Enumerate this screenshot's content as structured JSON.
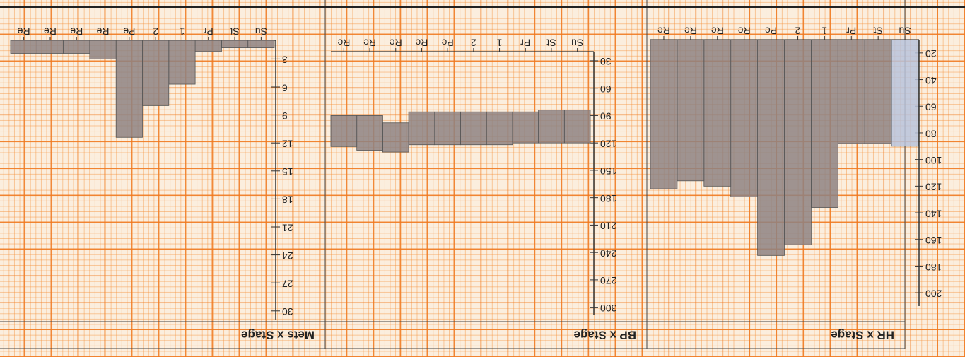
{
  "chart_data": [
    {
      "type": "bar",
      "title": "HR x Stage",
      "categories": [
        "Su",
        "St",
        "Pr",
        "1",
        "2",
        "Pe",
        "Re",
        "Re",
        "Re",
        "Re"
      ],
      "values": [
        90,
        88,
        88,
        136,
        164,
        172,
        128,
        120,
        116,
        122
      ],
      "colors": [
        "#b9c3dc",
        "#8e8282",
        "#8e8282",
        "#8e8282",
        "#8e8282",
        "#8e8282",
        "#8e8282",
        "#8e8282",
        "#8e8282",
        "#8e8282"
      ],
      "ylim": [
        10,
        210
      ],
      "yticks": [
        20,
        40,
        60,
        80,
        100,
        120,
        140,
        160,
        180,
        200
      ]
    },
    {
      "type": "range_bar",
      "title": "BP x Stage",
      "categories": [
        "Su",
        "St",
        "Pr",
        "1",
        "2",
        "Pe",
        "Re",
        "Re",
        "Re",
        "Re"
      ],
      "low": [
        84,
        84,
        86,
        86,
        86,
        86,
        86,
        98,
        90,
        90
      ],
      "high": [
        120,
        120,
        120,
        122,
        122,
        122,
        122,
        130,
        128,
        124
      ],
      "color": "#8e8282",
      "ylim": [
        20,
        308
      ],
      "yticks": [
        30,
        60,
        90,
        120,
        150,
        180,
        210,
        240,
        270,
        300
      ]
    },
    {
      "type": "bar",
      "title": "Mets x Stage",
      "categories": [
        "Su",
        "St",
        "Pr",
        "1",
        "2",
        "Pe",
        "Re",
        "Re",
        "Re",
        "Re"
      ],
      "values": [
        1.8,
        1.8,
        2.2,
        5.7,
        8.0,
        11.4,
        3.0,
        2.4,
        2.4,
        2.4
      ],
      "color": "#8e8282",
      "ylim": [
        1,
        31
      ],
      "yticks": [
        3,
        6,
        9,
        12,
        15,
        18,
        21,
        24,
        27,
        30
      ]
    }
  ]
}
